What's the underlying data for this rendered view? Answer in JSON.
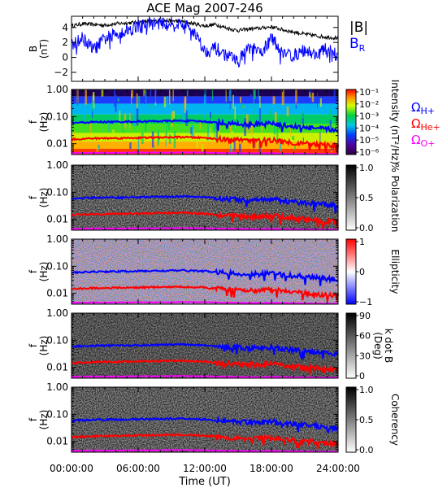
{
  "title": "ACE Mag 2007-246",
  "xlabel": "Time (UT)",
  "x_ticks": [
    "00:00:00",
    "06:00:00",
    "12:00:00",
    "18:00:00",
    "24:00:00"
  ],
  "colors": {
    "B_mag": "#000000",
    "B_R": "#0000ff",
    "omega_H": "#0000ff",
    "omega_He": "#ff0000",
    "omega_O": "#ff00ff"
  },
  "chart_data": [
    {
      "type": "line",
      "ylabel_top": "B",
      "ylabel_bottom": "(nT)",
      "ylim": [
        -3.2,
        5.5
      ],
      "y_ticks": [
        4,
        2,
        0,
        -2
      ],
      "y_tick_labels": [
        "4",
        "2",
        "0",
        "−2"
      ],
      "x_hours": [
        0,
        1,
        2,
        3,
        4,
        5,
        6,
        7,
        8,
        9,
        10,
        11,
        12,
        13,
        14,
        15,
        16,
        17,
        18,
        19,
        20,
        21,
        22,
        23,
        24
      ],
      "series": [
        {
          "name": "|B|",
          "values": [
            4.2,
            4.5,
            4.4,
            4.3,
            4.5,
            4.6,
            4.7,
            4.8,
            4.9,
            4.9,
            4.8,
            4.5,
            4.2,
            4.4,
            3.9,
            3.6,
            3.8,
            3.9,
            4.1,
            3.7,
            3.4,
            3.1,
            2.9,
            2.7,
            2.6
          ]
        },
        {
          "name": "B_R",
          "values": [
            1.5,
            2.6,
            1.0,
            2.5,
            3.2,
            3.6,
            4.2,
            4.5,
            4.6,
            4.6,
            4.4,
            3.6,
            0.8,
            1.2,
            0.2,
            -0.5,
            1.4,
            0.5,
            2.5,
            0.8,
            0.2,
            1.0,
            0.3,
            1.2,
            0.2
          ]
        }
      ]
    },
    {
      "type": "heatmap",
      "name": "intensity-spectrogram",
      "ylabel_top": "f",
      "ylabel_bottom": "(Hz)",
      "ylim": [
        0.004,
        1.0
      ],
      "y_scale": "log",
      "y_ticks": [
        1.0,
        0.1,
        0.01
      ],
      "y_tick_labels": [
        "1.00",
        "0.10",
        "0.01"
      ],
      "colorbar": {
        "label": "Intensity (nT²/Hz)",
        "scale": "log",
        "ticks": [
          "10⁻¹",
          "10⁻²",
          "10⁻³",
          "10⁻⁴",
          "10⁻⁵",
          "10⁻⁶"
        ]
      }
    },
    {
      "type": "heatmap",
      "name": "polarization-spectrogram",
      "ylabel_top": "f",
      "ylabel_bottom": "(Hz)",
      "ylim": [
        0.004,
        1.0
      ],
      "y_scale": "log",
      "y_ticks": [
        1.0,
        0.1,
        0.01
      ],
      "y_tick_labels": [
        "1.00",
        "0.10",
        "0.01"
      ],
      "colorbar": {
        "label": "% Polarization",
        "scale": "linear",
        "ticks": [
          "1.0",
          "0.5",
          "0.0"
        ]
      }
    },
    {
      "type": "heatmap",
      "name": "ellipticity-spectrogram",
      "ylabel_top": "f",
      "ylabel_bottom": "(Hz)",
      "ylim": [
        0.004,
        1.0
      ],
      "y_scale": "log",
      "y_ticks": [
        1.0,
        0.1,
        0.01
      ],
      "y_tick_labels": [
        "1.00",
        "0.10",
        "0.01"
      ],
      "colorbar": {
        "label": "Ellipticity",
        "scale": "linear",
        "ticks": [
          "1",
          "0",
          "−1"
        ]
      }
    },
    {
      "type": "heatmap",
      "name": "kdotb-spectrogram",
      "ylabel_top": "f",
      "ylabel_bottom": "(Hz)",
      "ylim": [
        0.004,
        1.0
      ],
      "y_scale": "log",
      "y_ticks": [
        1.0,
        0.1,
        0.01
      ],
      "y_tick_labels": [
        "1.00",
        "0.10",
        "0.01"
      ],
      "colorbar": {
        "label_top": "k dot B",
        "label_bottom": "(Deg)",
        "scale": "linear",
        "ticks": [
          "90",
          "60",
          "30",
          "0"
        ]
      }
    },
    {
      "type": "heatmap",
      "name": "coherency-spectrogram",
      "ylabel_top": "f",
      "ylabel_bottom": "(Hz)",
      "ylim": [
        0.004,
        1.0
      ],
      "y_scale": "log",
      "y_ticks": [
        1.0,
        0.1,
        0.01
      ],
      "y_tick_labels": [
        "1.00",
        "0.10",
        "0.01"
      ],
      "colorbar": {
        "label": "Coherency",
        "scale": "linear",
        "ticks": [
          "1.0",
          "0.5",
          "0.0"
        ]
      }
    }
  ],
  "gyrofrequency_lines": {
    "x_hours": [
      0,
      2,
      4,
      6,
      8,
      10,
      12,
      13,
      14,
      15,
      16,
      17,
      18,
      19,
      20,
      21,
      22,
      23,
      24
    ],
    "series": [
      {
        "name": "Ω_H+",
        "values": [
          0.058,
          0.063,
          0.064,
          0.066,
          0.068,
          0.07,
          0.066,
          0.06,
          0.056,
          0.054,
          0.05,
          0.052,
          0.055,
          0.048,
          0.044,
          0.04,
          0.037,
          0.034,
          0.032
        ]
      },
      {
        "name": "Ω_He+",
        "values": [
          0.0145,
          0.0157,
          0.016,
          0.0165,
          0.017,
          0.0175,
          0.0165,
          0.015,
          0.014,
          0.0135,
          0.0125,
          0.013,
          0.0138,
          0.012,
          0.011,
          0.01,
          0.0093,
          0.0085,
          0.008
        ]
      },
      {
        "name": "Ω_O+",
        "values": [
          0.0045,
          0.0046,
          0.0046,
          0.0047,
          0.0047,
          0.0048,
          0.0047,
          0.0046,
          0.0045,
          0.0045,
          0.0044,
          0.0044,
          0.0045,
          0.0044,
          0.0043,
          0.0043,
          0.0042,
          0.0042,
          0.0042
        ]
      }
    ]
  },
  "legend": {
    "top": [
      {
        "label": "|B|",
        "sub": ""
      },
      {
        "label": "B",
        "sub": "R"
      }
    ],
    "freq": [
      {
        "label": "Ω",
        "sub": "H+"
      },
      {
        "label": "Ω",
        "sub": "He+"
      },
      {
        "label": "Ω",
        "sub": "O+"
      }
    ]
  }
}
